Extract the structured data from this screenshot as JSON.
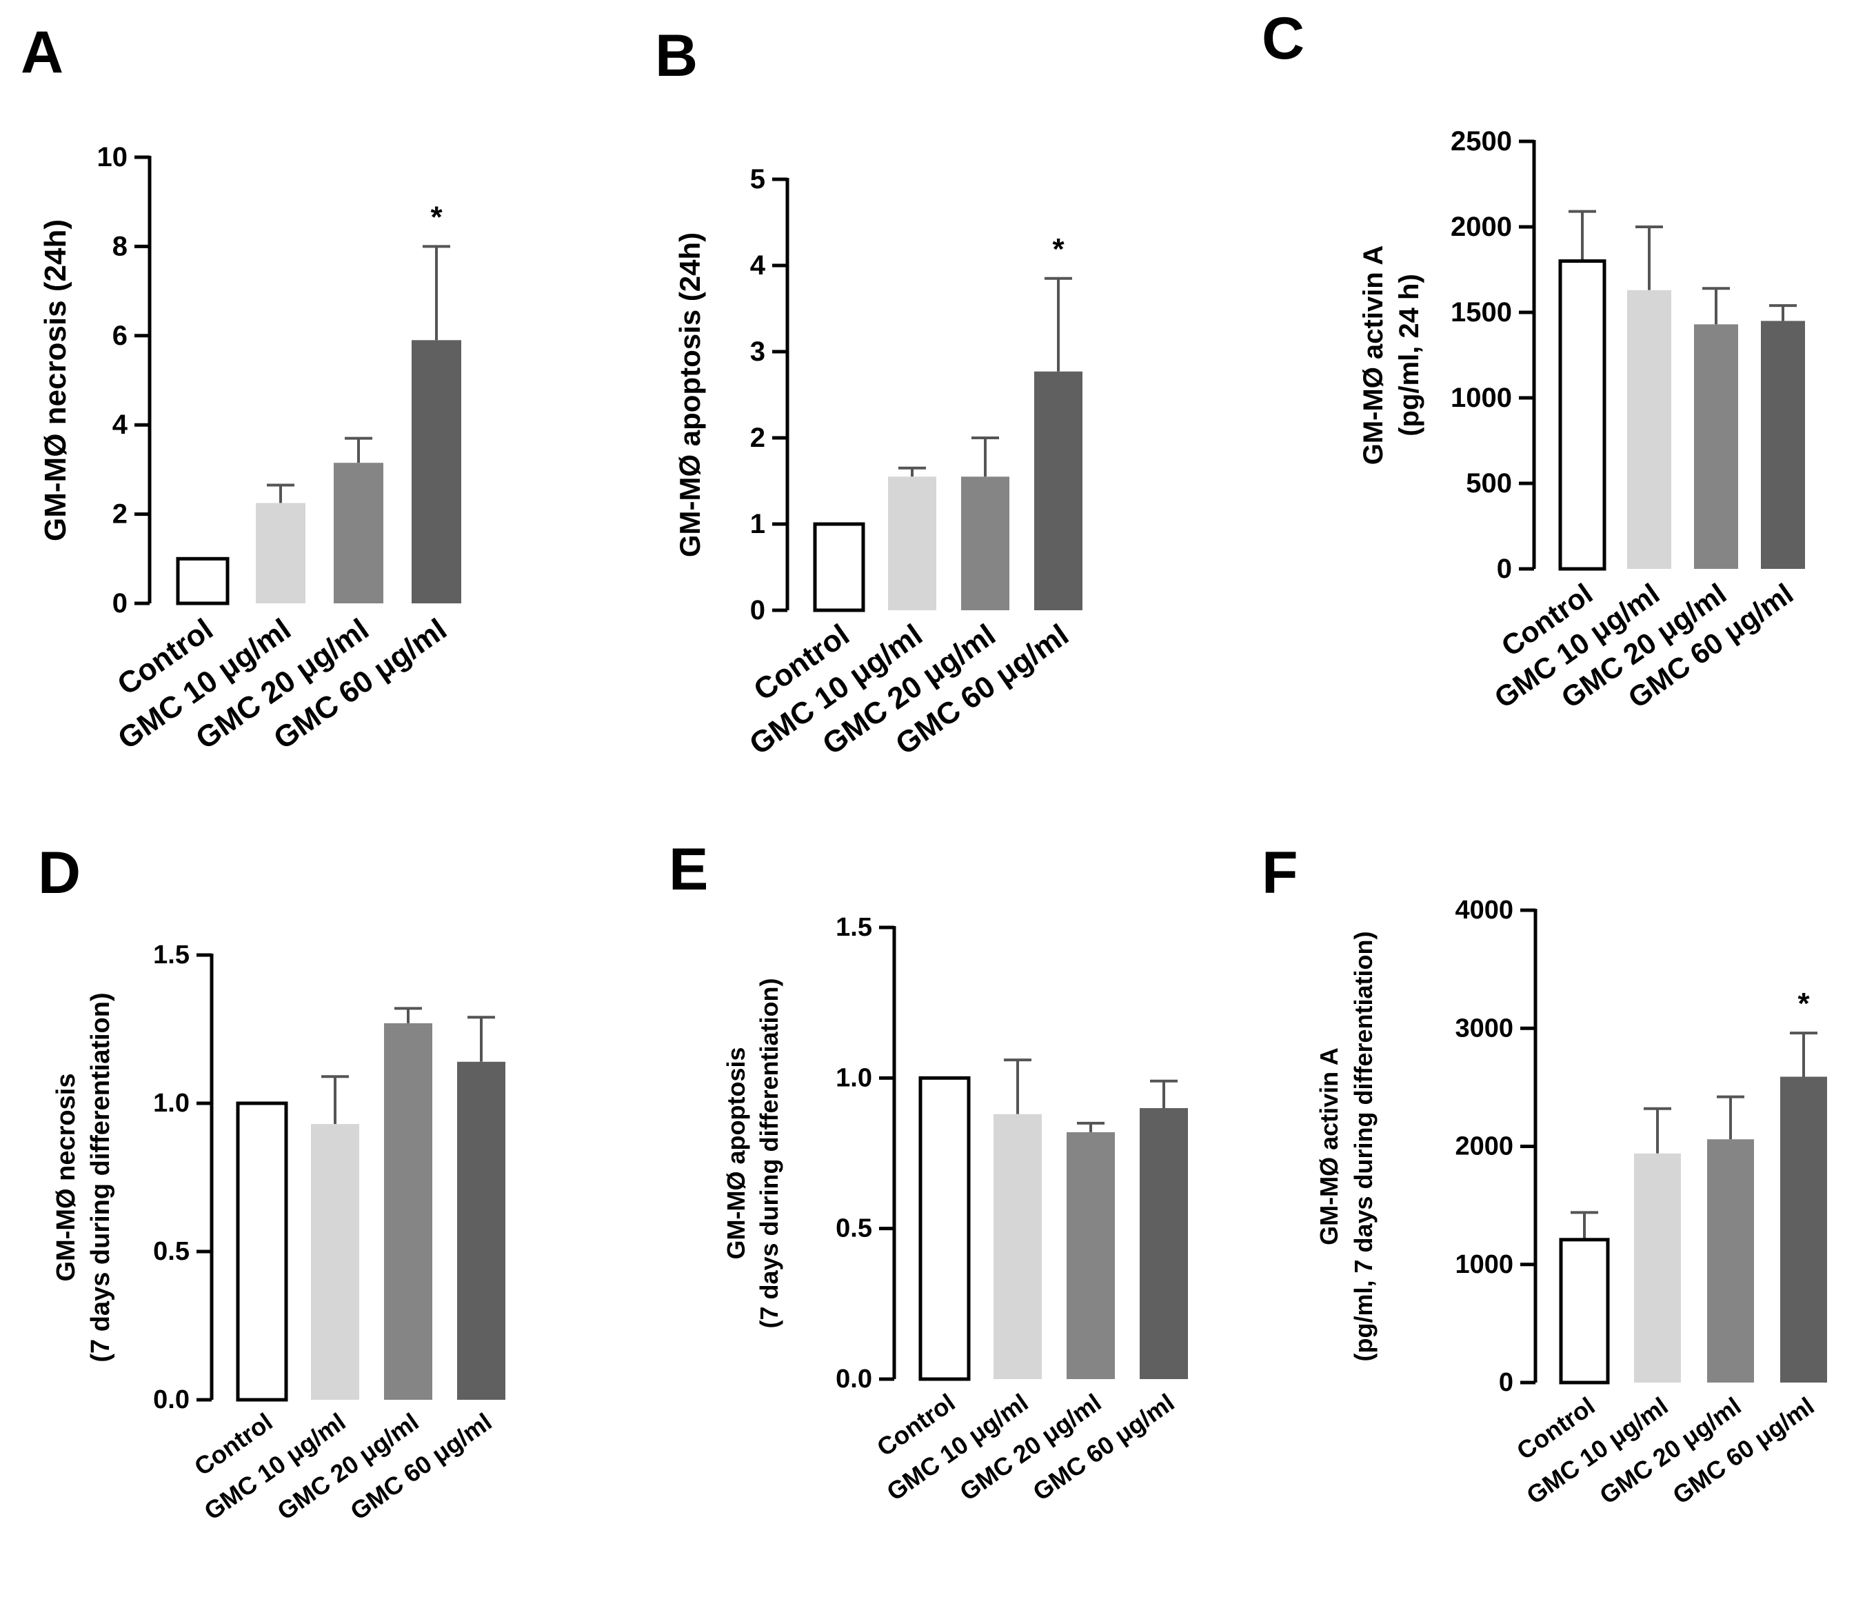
{
  "figure": {
    "colors": {
      "Control": "#ffffff",
      "GMC 10 μg/ml": "#d6d6d6",
      "GMC 20 μg/ml": "#858585",
      "GMC 60 μg/ml": "#606060",
      "axis": "#000000",
      "error_bar": "#555555"
    }
  },
  "chart_data": [
    {
      "panel": "A",
      "type": "bar",
      "title": "",
      "ylabel_lines": [
        "GM-MØ necrosis (24h)"
      ],
      "xlabel": "",
      "categories": [
        "Control",
        "GMC 10 μg/ml",
        "GMC 20 μg/ml",
        "GMC 60 μg/ml"
      ],
      "values": [
        1.0,
        2.25,
        3.15,
        5.9
      ],
      "errors": [
        0,
        0.4,
        0.55,
        2.1
      ],
      "significance": [
        "",
        "",
        "",
        "*"
      ],
      "ylim": [
        0,
        10
      ],
      "yticks": [
        0,
        2,
        4,
        6,
        8,
        10
      ],
      "ytick_labels": [
        "0",
        "2",
        "4",
        "6",
        "8",
        "10"
      ]
    },
    {
      "panel": "B",
      "type": "bar",
      "title": "",
      "ylabel_lines": [
        "GM-MØ apoptosis  (24h)"
      ],
      "xlabel": "",
      "categories": [
        "Control",
        "GMC 10 μg/ml",
        "GMC 20 μg/ml",
        "GMC 60 μg/ml"
      ],
      "values": [
        1.0,
        1.55,
        1.55,
        2.77
      ],
      "errors": [
        0,
        0.1,
        0.45,
        1.08
      ],
      "significance": [
        "",
        "",
        "",
        "*"
      ],
      "ylim": [
        0,
        5
      ],
      "yticks": [
        0,
        1,
        2,
        3,
        4,
        5
      ],
      "ytick_labels": [
        "0",
        "1",
        "2",
        "3",
        "4",
        "5"
      ]
    },
    {
      "panel": "C",
      "type": "bar",
      "title": "",
      "ylabel_lines": [
        "GM-MØ activin A",
        "(pg/ml, 24 h)"
      ],
      "xlabel": "",
      "categories": [
        "Control",
        "GMC 10 μg/ml",
        "GMC 20 μg/ml",
        "GMC 60 μg/ml"
      ],
      "values": [
        1800,
        1630,
        1430,
        1450
      ],
      "errors": [
        290,
        370,
        210,
        90
      ],
      "significance": [
        "",
        "",
        "",
        ""
      ],
      "ylim": [
        0,
        2500
      ],
      "yticks": [
        0,
        500,
        1000,
        1500,
        2000,
        2500
      ],
      "ytick_labels": [
        "0",
        "500",
        "1000",
        "1500",
        "2000",
        "2500"
      ]
    },
    {
      "panel": "D",
      "type": "bar",
      "title": "",
      "ylabel_lines": [
        "GM-MØ necrosis",
        "(7 days during differentiation)"
      ],
      "xlabel": "",
      "categories": [
        "Control",
        "GMC 10 μg/ml",
        "GMC 20 μg/ml",
        "GMC 60 μg/ml"
      ],
      "values": [
        1.0,
        0.93,
        1.27,
        1.14
      ],
      "errors": [
        0,
        0.16,
        0.05,
        0.15
      ],
      "significance": [
        "",
        "",
        "",
        ""
      ],
      "ylim": [
        0,
        1.5
      ],
      "yticks": [
        0,
        0.5,
        1.0,
        1.5
      ],
      "ytick_labels": [
        "0.0",
        "0.5",
        "1.0",
        "1.5"
      ]
    },
    {
      "panel": "E",
      "type": "bar",
      "title": "",
      "ylabel_lines": [
        "GM-MØ apoptosis",
        "(7 days during differentiation)"
      ],
      "xlabel": "",
      "categories": [
        "Control",
        "GMC 10 μg/ml",
        "GMC 20 μg/ml",
        "GMC 60 μg/ml"
      ],
      "values": [
        1.0,
        0.88,
        0.82,
        0.9
      ],
      "errors": [
        0,
        0.18,
        0.03,
        0.09
      ],
      "significance": [
        "",
        "",
        "",
        ""
      ],
      "ylim": [
        0,
        1.5
      ],
      "yticks": [
        0,
        0.5,
        1.0,
        1.5
      ],
      "ytick_labels": [
        "0.0",
        "0.5",
        "1.0",
        "1.5"
      ]
    },
    {
      "panel": "F",
      "type": "bar",
      "title": "",
      "ylabel_lines": [
        "GM-MØ activin A",
        "(pg/ml, 7 days during differentiation)"
      ],
      "xlabel": "",
      "categories": [
        "Control",
        "GMC 10 μg/ml",
        "GMC 20 μg/ml",
        "GMC 60 μg/ml"
      ],
      "values": [
        1210,
        1940,
        2060,
        2590
      ],
      "errors": [
        230,
        380,
        360,
        370
      ],
      "significance": [
        "",
        "",
        "",
        "*"
      ],
      "ylim": [
        0,
        4000
      ],
      "yticks": [
        0,
        1000,
        2000,
        3000,
        4000
      ],
      "ytick_labels": [
        "0",
        "1000",
        "2000",
        "3000",
        "4000"
      ]
    }
  ]
}
